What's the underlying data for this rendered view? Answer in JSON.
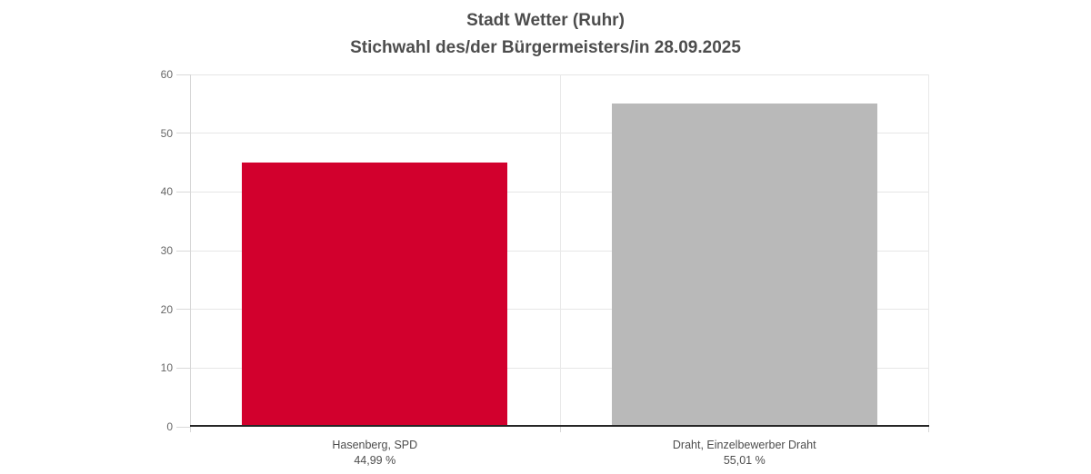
{
  "chart_data": {
    "type": "bar",
    "title_lines": [
      "Stadt Wetter (Ruhr)",
      "Stichwahl des/der Bürgermeisters/in 28.09.2025"
    ],
    "categories": [
      "Hasenberg, SPD",
      "Draht, Einzelbewerber Draht"
    ],
    "values": [
      44.99,
      55.01
    ],
    "value_labels": [
      "44,99 %",
      "55,01 %"
    ],
    "bar_colors": [
      "#d2002d",
      "#b9b9b9"
    ],
    "ylim": [
      0,
      60
    ],
    "yticks": [
      0,
      10,
      20,
      30,
      40,
      50,
      60
    ],
    "xlabel": "",
    "ylabel": "",
    "grid": true,
    "legend": false,
    "background": "#ffffff"
  },
  "colors": {
    "bar_spd_red": "#d2002d",
    "bar_gray": "#b9b9b9",
    "title_text": "#4d4d4d",
    "axis_label_text": "#666666",
    "baseline": "#262626",
    "gridline": "#e6e6e6"
  }
}
